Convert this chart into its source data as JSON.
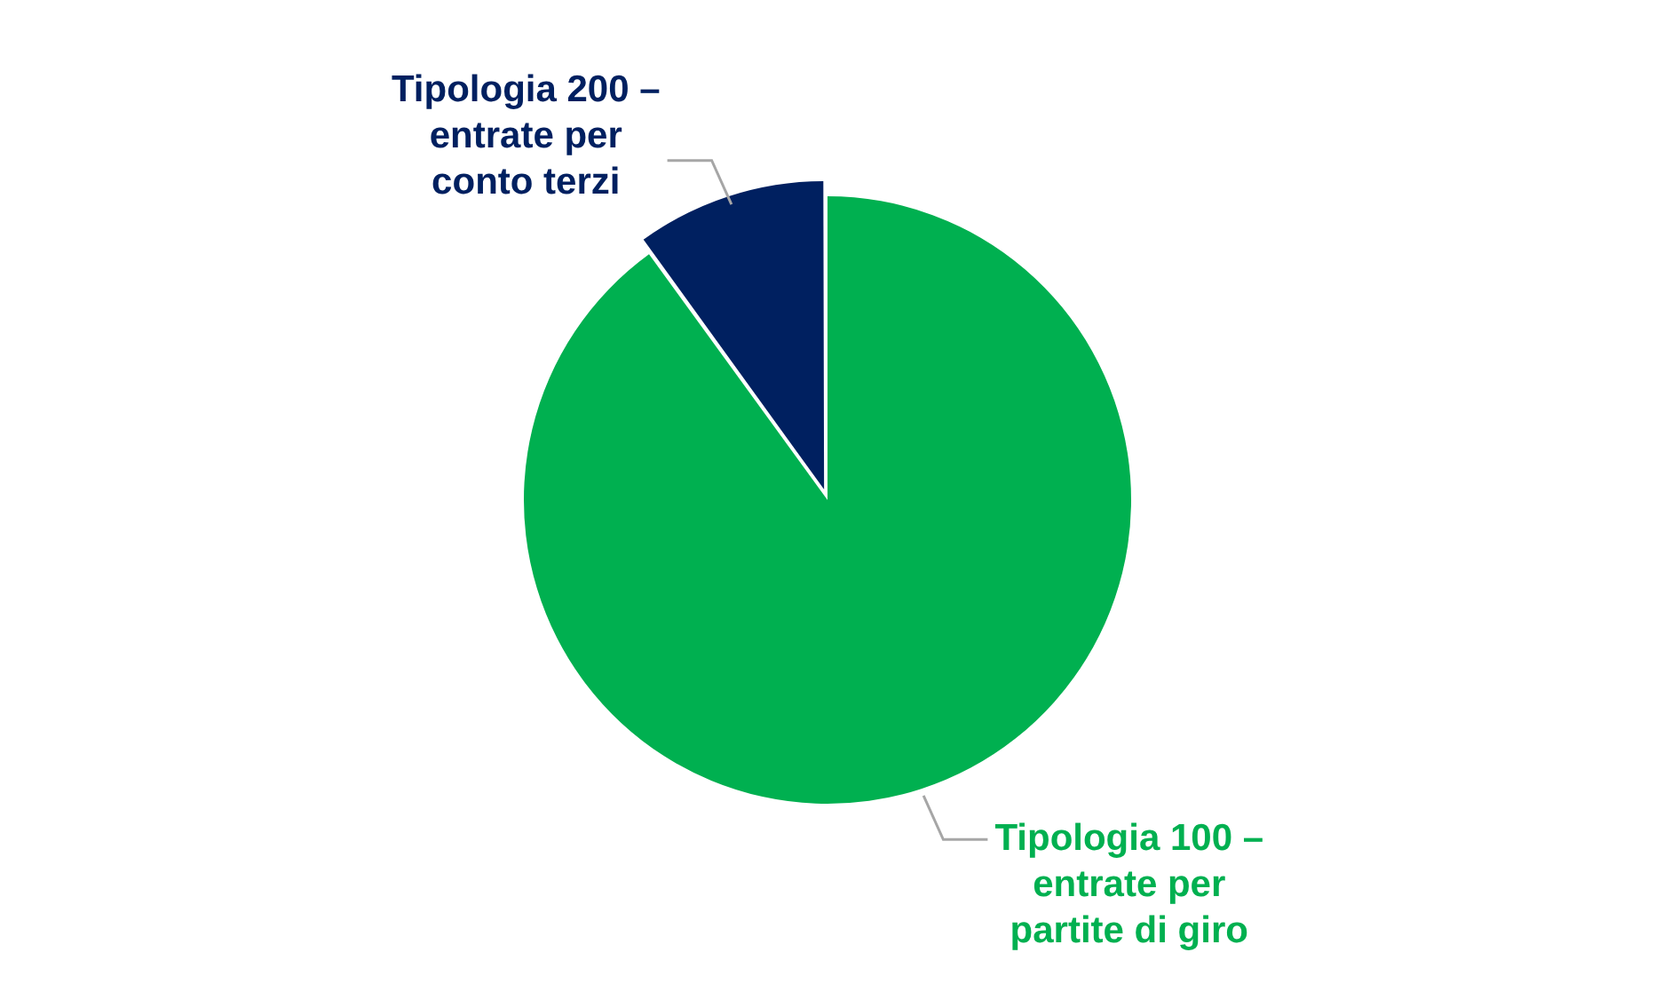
{
  "chart_data": {
    "type": "pie",
    "categories": [
      "Tipologia 100 – entrate per partite di giro",
      "Tipologia 200 – entrate per conto terzi"
    ],
    "values": [
      90,
      10
    ],
    "colors": [
      "#00b050",
      "#002060"
    ],
    "legend": false
  }
}
